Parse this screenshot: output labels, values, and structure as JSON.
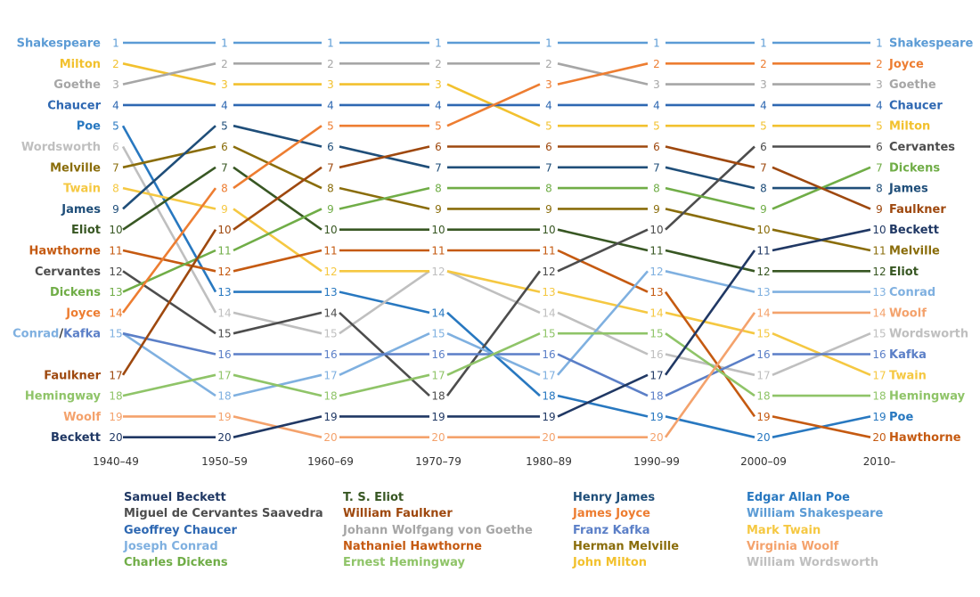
{
  "chart_data": {
    "type": "line",
    "title": "",
    "periods": [
      "1940–49",
      "1950–59",
      "1960–69",
      "1970–79",
      "1980–89",
      "1990–99",
      "2000–09",
      "2010–"
    ],
    "rank_range": [
      1,
      20
    ],
    "grid": false,
    "legend_position": "bottom",
    "start_labels": [
      {
        "rank": 1,
        "text": "Shakespeare",
        "author": "Shakespeare"
      },
      {
        "rank": 2,
        "text": "Milton",
        "author": "Milton"
      },
      {
        "rank": 3,
        "text": "Goethe",
        "author": "Goethe"
      },
      {
        "rank": 4,
        "text": "Chaucer",
        "author": "Chaucer"
      },
      {
        "rank": 5,
        "text": "Poe",
        "author": "Poe"
      },
      {
        "rank": 6,
        "text": "Wordsworth",
        "author": "Wordsworth"
      },
      {
        "rank": 7,
        "text": "Melville",
        "author": "Melville"
      },
      {
        "rank": 8,
        "text": "Twain",
        "author": "Twain"
      },
      {
        "rank": 9,
        "text": "James",
        "author": "James"
      },
      {
        "rank": 10,
        "text": "Eliot",
        "author": "Eliot"
      },
      {
        "rank": 11,
        "text": "Hawthorne",
        "author": "Hawthorne"
      },
      {
        "rank": 12,
        "text": "Cervantes",
        "author": "Cervantes"
      },
      {
        "rank": 13,
        "text": "Dickens",
        "author": "Dickens"
      },
      {
        "rank": 14,
        "text": "Joyce",
        "author": "Joyce"
      },
      {
        "rank": 15,
        "text": "Conrad/Kafka",
        "author": "Conrad"
      },
      {
        "rank": 17,
        "text": "Faulkner",
        "author": "Faulkner"
      },
      {
        "rank": 18,
        "text": "Hemingway",
        "author": "Hemingway"
      },
      {
        "rank": 19,
        "text": "Woolf",
        "author": "Woolf"
      },
      {
        "rank": 20,
        "text": "Beckett",
        "author": "Beckett"
      }
    ],
    "end_labels": [
      {
        "rank": 1,
        "text": "Shakespeare",
        "author": "Shakespeare"
      },
      {
        "rank": 2,
        "text": "Joyce",
        "author": "Joyce"
      },
      {
        "rank": 3,
        "text": "Goethe",
        "author": "Goethe"
      },
      {
        "rank": 4,
        "text": "Chaucer",
        "author": "Chaucer"
      },
      {
        "rank": 5,
        "text": "Milton",
        "author": "Milton"
      },
      {
        "rank": 6,
        "text": "Cervantes",
        "author": "Cervantes"
      },
      {
        "rank": 7,
        "text": "Dickens",
        "author": "Dickens"
      },
      {
        "rank": 8,
        "text": "James",
        "author": "James"
      },
      {
        "rank": 9,
        "text": "Faulkner",
        "author": "Faulkner"
      },
      {
        "rank": 10,
        "text": "Beckett",
        "author": "Beckett"
      },
      {
        "rank": 11,
        "text": "Melville",
        "author": "Melville"
      },
      {
        "rank": 12,
        "text": "Eliot",
        "author": "Eliot"
      },
      {
        "rank": 13,
        "text": "Conrad",
        "author": "Conrad"
      },
      {
        "rank": 14,
        "text": "Woolf",
        "author": "Woolf"
      },
      {
        "rank": 15,
        "text": "Wordsworth",
        "author": "Wordsworth"
      },
      {
        "rank": 16,
        "text": "Kafka",
        "author": "Kafka"
      },
      {
        "rank": 17,
        "text": "Twain",
        "author": "Twain"
      },
      {
        "rank": 18,
        "text": "Hemingway",
        "author": "Hemingway"
      },
      {
        "rank": 19,
        "text": "Poe",
        "author": "Poe"
      },
      {
        "rank": 20,
        "text": "Hawthorne",
        "author": "Hawthorne"
      }
    ],
    "series": [
      {
        "key": "Shakespeare",
        "name": "William Shakespeare",
        "color": "#5b9bd5",
        "ranks": [
          1,
          1,
          1,
          1,
          1,
          1,
          1,
          1
        ]
      },
      {
        "key": "Milton",
        "name": "John Milton",
        "color": "#f2c12e",
        "ranks": [
          2,
          3,
          3,
          3,
          5,
          5,
          5,
          5
        ]
      },
      {
        "key": "Goethe",
        "name": "Johann Wolfgang von Goethe",
        "color": "#a6a6a6",
        "ranks": [
          3,
          2,
          2,
          2,
          2,
          3,
          3,
          3
        ]
      },
      {
        "key": "Chaucer",
        "name": "Geoffrey Chaucer",
        "color": "#2e68b2",
        "ranks": [
          4,
          4,
          4,
          4,
          4,
          4,
          4,
          4
        ]
      },
      {
        "key": "Poe",
        "name": "Edgar Allan Poe",
        "color": "#2878c0",
        "ranks": [
          5,
          13,
          13,
          14,
          18,
          19,
          20,
          19
        ]
      },
      {
        "key": "Wordsworth",
        "name": "William Wordsworth",
        "color": "#bfbfbf",
        "ranks": [
          6,
          14,
          15,
          12,
          14,
          16,
          17,
          15
        ]
      },
      {
        "key": "Melville",
        "name": "Herman Melville",
        "color": "#8a6d0b",
        "ranks": [
          7,
          6,
          8,
          9,
          9,
          9,
          10,
          11
        ]
      },
      {
        "key": "Twain",
        "name": "Mark Twain",
        "color": "#f5c842",
        "ranks": [
          8,
          9,
          12,
          12,
          13,
          14,
          15,
          17
        ]
      },
      {
        "key": "James",
        "name": "Henry James",
        "color": "#1f4e79",
        "ranks": [
          9,
          5,
          6,
          7,
          7,
          7,
          8,
          8
        ]
      },
      {
        "key": "Eliot",
        "name": "T. S. Eliot",
        "color": "#385723",
        "ranks": [
          10,
          7,
          10,
          10,
          10,
          11,
          12,
          12
        ]
      },
      {
        "key": "Hawthorne",
        "name": "Nathaniel Hawthorne",
        "color": "#c55a11",
        "ranks": [
          11,
          12,
          11,
          11,
          11,
          13,
          19,
          20
        ]
      },
      {
        "key": "Cervantes",
        "name": "Miguel de Cervantes Saavedra",
        "color": "#4d4d4d",
        "ranks": [
          12,
          15,
          14,
          18,
          12,
          10,
          6,
          6
        ]
      },
      {
        "key": "Dickens",
        "name": "Charles Dickens",
        "color": "#70ad47",
        "ranks": [
          13,
          11,
          9,
          8,
          8,
          8,
          9,
          7
        ]
      },
      {
        "key": "Joyce",
        "name": "James Joyce",
        "color": "#ed7d31",
        "ranks": [
          14,
          8,
          5,
          5,
          3,
          2,
          2,
          2
        ]
      },
      {
        "key": "Conrad",
        "name": "Joseph Conrad",
        "color": "#7fb0e0",
        "ranks": [
          15,
          18,
          17,
          15,
          17,
          12,
          13,
          13
        ]
      },
      {
        "key": "Kafka",
        "name": "Franz Kafka",
        "color": "#5b7fc7",
        "ranks": [
          15,
          16,
          16,
          16,
          16,
          18,
          16,
          16
        ]
      },
      {
        "key": "Faulkner",
        "name": "William Faulkner",
        "color": "#9e480e",
        "ranks": [
          17,
          10,
          7,
          6,
          6,
          6,
          7,
          9
        ]
      },
      {
        "key": "Hemingway",
        "name": "Ernest Hemingway",
        "color": "#8fc468",
        "ranks": [
          18,
          17,
          18,
          17,
          15,
          15,
          18,
          18
        ]
      },
      {
        "key": "Woolf",
        "name": "Virginia Woolf",
        "color": "#f4a26c",
        "ranks": [
          19,
          19,
          20,
          20,
          20,
          20,
          14,
          14
        ]
      },
      {
        "key": "Beckett",
        "name": "Samuel Beckett",
        "color": "#203864",
        "ranks": [
          20,
          20,
          19,
          19,
          19,
          17,
          11,
          10
        ]
      }
    ],
    "legend_columns": [
      [
        "Beckett",
        "Cervantes",
        "Chaucer",
        "Conrad",
        "Dickens"
      ],
      [
        "Eliot",
        "Faulkner",
        "Goethe",
        "Hawthorne",
        "Hemingway"
      ],
      [
        "James",
        "Joyce",
        "Kafka",
        "Melville",
        "Milton"
      ],
      [
        "Poe",
        "Shakespeare",
        "Twain",
        "Woolf",
        "Wordsworth"
      ]
    ]
  }
}
